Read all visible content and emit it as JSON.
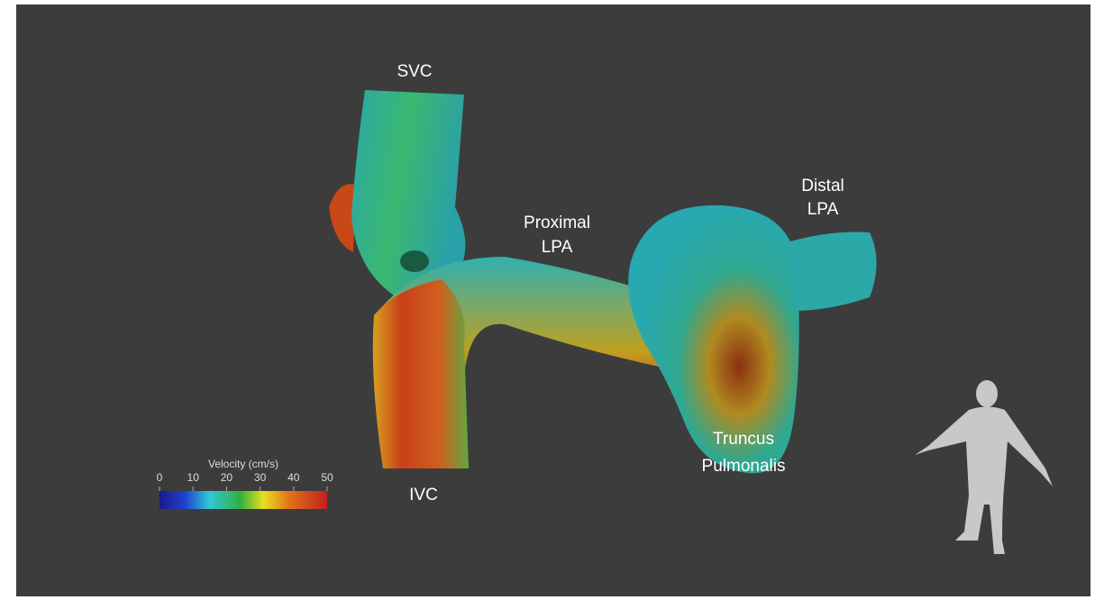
{
  "labels": {
    "svc": "SVC",
    "proximal_lpa": [
      "Proximal",
      "LPA"
    ],
    "distal_lpa": [
      "Distal",
      "LPA"
    ],
    "ivc": "IVC",
    "truncus": [
      "Truncus",
      "Pulmonalis"
    ]
  },
  "colorbar": {
    "title": "Velocity (cm/s)",
    "range": [
      0,
      50
    ],
    "ticks": [
      0,
      10,
      20,
      30,
      40,
      50
    ]
  }
}
